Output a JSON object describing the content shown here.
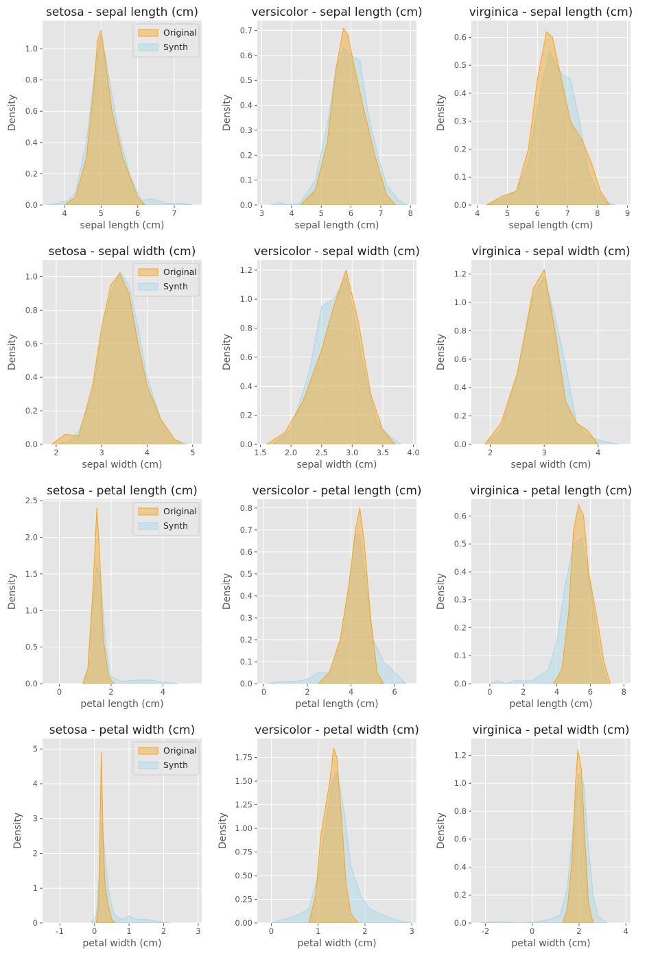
{
  "legend_labels": {
    "original": "Original",
    "synth": "Synth"
  },
  "colors": {
    "original": "#f5a623",
    "synth": "#a8d8e6",
    "panel_bg": "#e5e5e5",
    "grid": "#ffffff",
    "text": "#555555",
    "title": "#222222"
  },
  "chart_data": [
    {
      "type": "area",
      "title": "setosa - sepal length (cm)",
      "xlabel": "sepal length (cm)",
      "ylabel": "Density",
      "xlim": [
        3.4,
        7.75
      ],
      "ylim": [
        0,
        1.18
      ],
      "xticks": [
        "4",
        "5",
        "6",
        "7"
      ],
      "yticks": [
        "0.0",
        "0.2",
        "0.4",
        "0.6",
        "0.8",
        "1.0"
      ],
      "legend": "upper right",
      "series": [
        {
          "name": "Original",
          "x": [
            4.0,
            4.3,
            4.6,
            4.8,
            4.9,
            5.0,
            5.1,
            5.3,
            5.6,
            6.0,
            6.2
          ],
          "y": [
            0,
            0.05,
            0.3,
            0.75,
            1.05,
            1.12,
            0.95,
            0.6,
            0.3,
            0.05,
            0
          ]
        },
        {
          "name": "Synth",
          "x": [
            3.5,
            3.8,
            4.1,
            4.3,
            4.6,
            4.85,
            5.0,
            5.1,
            5.3,
            5.5,
            5.8,
            6.1,
            6.4,
            6.8,
            7.2,
            7.5
          ],
          "y": [
            0,
            0.01,
            0.03,
            0.08,
            0.4,
            0.9,
            1.08,
            0.98,
            0.7,
            0.45,
            0.18,
            0.03,
            0.04,
            0.01,
            0.01,
            0
          ]
        }
      ]
    },
    {
      "type": "area",
      "title": "versicolor - sepal length (cm)",
      "xlabel": "sepal length (cm)",
      "ylabel": "Density",
      "xlim": [
        2.85,
        8.2
      ],
      "ylim": [
        0,
        0.74
      ],
      "xticks": [
        "3",
        "4",
        "5",
        "6",
        "7",
        "8"
      ],
      "yticks": [
        "0.0",
        "0.1",
        "0.2",
        "0.3",
        "0.4",
        "0.5",
        "0.6",
        "0.7"
      ],
      "series": [
        {
          "name": "Original",
          "x": [
            4.3,
            4.8,
            5.2,
            5.5,
            5.75,
            5.9,
            6.1,
            6.4,
            6.8,
            7.2,
            7.5
          ],
          "y": [
            0,
            0.06,
            0.25,
            0.55,
            0.71,
            0.68,
            0.56,
            0.4,
            0.2,
            0.04,
            0
          ]
        },
        {
          "name": "Synth",
          "x": [
            3.3,
            3.6,
            3.9,
            4.3,
            4.8,
            5.2,
            5.5,
            5.75,
            6.0,
            6.3,
            6.6,
            6.9,
            7.2,
            7.6,
            7.9
          ],
          "y": [
            0,
            0.01,
            0.0,
            0.01,
            0.1,
            0.32,
            0.55,
            0.63,
            0.6,
            0.58,
            0.35,
            0.2,
            0.08,
            0.02,
            0
          ]
        }
      ]
    },
    {
      "type": "area",
      "title": "virginica - sepal length (cm)",
      "xlabel": "sepal length (cm)",
      "ylabel": "Density",
      "xlim": [
        3.8,
        9.1
      ],
      "ylim": [
        0,
        0.66
      ],
      "xticks": [
        "4",
        "5",
        "6",
        "7",
        "8",
        "9"
      ],
      "yticks": [
        "0.0",
        "0.1",
        "0.2",
        "0.3",
        "0.4",
        "0.5",
        "0.6"
      ],
      "series": [
        {
          "name": "Original",
          "x": [
            4.3,
            4.8,
            5.3,
            5.7,
            6.0,
            6.3,
            6.5,
            6.8,
            7.1,
            7.5,
            7.8,
            8.1,
            8.4
          ],
          "y": [
            0,
            0.03,
            0.05,
            0.2,
            0.45,
            0.62,
            0.6,
            0.45,
            0.3,
            0.23,
            0.15,
            0.05,
            0
          ]
        },
        {
          "name": "Synth",
          "x": [
            4.3,
            4.8,
            5.3,
            5.7,
            6.0,
            6.4,
            6.8,
            7.1,
            7.4,
            7.7,
            8.0,
            8.3,
            8.6
          ],
          "y": [
            0,
            0.02,
            0.05,
            0.15,
            0.35,
            0.55,
            0.47,
            0.45,
            0.3,
            0.12,
            0.05,
            0.01,
            0
          ]
        }
      ]
    },
    {
      "type": "area",
      "title": "setosa - sepal width (cm)",
      "xlabel": "sepal width (cm)",
      "ylabel": "Density",
      "xlim": [
        1.7,
        5.2
      ],
      "ylim": [
        0,
        1.1
      ],
      "xticks": [
        "2",
        "3",
        "4",
        "5"
      ],
      "yticks": [
        "0.0",
        "0.2",
        "0.4",
        "0.6",
        "0.8",
        "1.0"
      ],
      "legend": "upper right",
      "series": [
        {
          "name": "Original",
          "x": [
            1.9,
            2.2,
            2.5,
            2.8,
            3.0,
            3.2,
            3.4,
            3.6,
            3.8,
            4.0,
            4.3,
            4.6,
            4.8
          ],
          "y": [
            0,
            0.06,
            0.05,
            0.35,
            0.7,
            0.95,
            1.02,
            0.9,
            0.6,
            0.35,
            0.15,
            0.03,
            0
          ]
        },
        {
          "name": "Synth",
          "x": [
            2.0,
            2.3,
            2.5,
            2.8,
            3.0,
            3.2,
            3.4,
            3.6,
            3.8,
            4.0,
            4.3,
            4.6,
            4.9
          ],
          "y": [
            0,
            0.02,
            0.08,
            0.3,
            0.65,
            0.9,
            1.03,
            0.95,
            0.7,
            0.4,
            0.15,
            0.03,
            0
          ]
        }
      ]
    },
    {
      "type": "area",
      "title": "versicolor - sepal width (cm)",
      "xlabel": "sepal width (cm)",
      "ylabel": "Density",
      "xlim": [
        1.45,
        4.05
      ],
      "ylim": [
        0,
        1.27
      ],
      "xticks": [
        "1.5",
        "2.0",
        "2.5",
        "3.0",
        "3.5",
        "4.0"
      ],
      "yticks": [
        "0.0",
        "0.2",
        "0.4",
        "0.6",
        "0.8",
        "1.0",
        "1.2"
      ],
      "series": [
        {
          "name": "Original",
          "x": [
            1.6,
            1.9,
            2.2,
            2.5,
            2.7,
            2.9,
            3.1,
            3.3,
            3.5,
            3.7
          ],
          "y": [
            0,
            0.08,
            0.3,
            0.65,
            0.95,
            1.2,
            0.85,
            0.35,
            0.1,
            0
          ]
        },
        {
          "name": "Synth",
          "x": [
            1.7,
            2.0,
            2.3,
            2.5,
            2.7,
            2.9,
            3.0,
            3.2,
            3.4,
            3.6,
            3.8
          ],
          "y": [
            0,
            0.1,
            0.5,
            0.95,
            1.0,
            1.15,
            0.95,
            0.5,
            0.15,
            0.06,
            0
          ]
        }
      ]
    },
    {
      "type": "area",
      "title": "virginica - sepal width (cm)",
      "xlabel": "sepal width (cm)",
      "ylabel": "Density",
      "xlim": [
        1.65,
        4.6
      ],
      "ylim": [
        0,
        1.3
      ],
      "xticks": [
        "2",
        "3",
        "4"
      ],
      "yticks": [
        "0.0",
        "0.2",
        "0.4",
        "0.6",
        "0.8",
        "1.0",
        "1.2"
      ],
      "series": [
        {
          "name": "Original",
          "x": [
            1.9,
            2.2,
            2.5,
            2.8,
            3.0,
            3.2,
            3.4,
            3.6,
            3.8,
            4.0
          ],
          "y": [
            0,
            0.15,
            0.5,
            1.1,
            1.23,
            0.8,
            0.3,
            0.15,
            0.1,
            0
          ]
        },
        {
          "name": "Synth",
          "x": [
            1.9,
            2.2,
            2.5,
            2.8,
            3.0,
            3.2,
            3.4,
            3.6,
            3.8,
            4.1,
            4.4
          ],
          "y": [
            0,
            0.1,
            0.5,
            1.05,
            1.18,
            0.9,
            0.55,
            0.15,
            0.06,
            0.02,
            0
          ]
        }
      ]
    },
    {
      "type": "area",
      "title": "setosa - petal length (cm)",
      "xlabel": "petal length (cm)",
      "ylabel": "Density",
      "xlim": [
        -0.65,
        5.5
      ],
      "ylim": [
        0,
        2.52
      ],
      "xticks": [
        "0",
        "2",
        "4"
      ],
      "yticks": [
        "0.0",
        "0.5",
        "1.0",
        "1.5",
        "2.0",
        "2.5"
      ],
      "legend": "upper right",
      "series": [
        {
          "name": "Original",
          "x": [
            0.9,
            1.1,
            1.3,
            1.45,
            1.55,
            1.7,
            1.9,
            2.1
          ],
          "y": [
            0,
            0.2,
            1.3,
            2.4,
            1.8,
            0.6,
            0.1,
            0
          ]
        },
        {
          "name": "Synth",
          "x": [
            0.9,
            1.1,
            1.3,
            1.45,
            1.6,
            1.8,
            2.0,
            2.4,
            3.0,
            3.5,
            4.0,
            4.6
          ],
          "y": [
            0,
            0.2,
            1.2,
            1.6,
            1.4,
            0.5,
            0.1,
            0.03,
            0.05,
            0.05,
            0.02,
            0
          ]
        }
      ]
    },
    {
      "type": "area",
      "title": "versicolor - petal length (cm)",
      "xlabel": "petal length (cm)",
      "ylabel": "Density",
      "xlim": [
        -0.3,
        7.0
      ],
      "ylim": [
        0,
        0.84
      ],
      "xticks": [
        "0",
        "2",
        "4",
        "6"
      ],
      "yticks": [
        "0.0",
        "0.1",
        "0.2",
        "0.3",
        "0.4",
        "0.5",
        "0.6",
        "0.7",
        "0.8"
      ],
      "series": [
        {
          "name": "Original",
          "x": [
            2.5,
            3.0,
            3.5,
            3.9,
            4.2,
            4.4,
            4.6,
            4.9,
            5.2,
            5.5
          ],
          "y": [
            0,
            0.05,
            0.2,
            0.45,
            0.7,
            0.8,
            0.65,
            0.3,
            0.05,
            0
          ]
        },
        {
          "name": "Synth",
          "x": [
            0.2,
            0.8,
            1.5,
            2.0,
            2.5,
            3.0,
            3.5,
            3.9,
            4.2,
            4.4,
            4.7,
            5.0,
            5.5,
            6.0,
            6.5
          ],
          "y": [
            0,
            0.01,
            0.01,
            0.02,
            0.05,
            0.05,
            0.2,
            0.45,
            0.68,
            0.68,
            0.45,
            0.2,
            0.1,
            0.05,
            0
          ]
        }
      ]
    },
    {
      "type": "area",
      "title": "virginica - petal length (cm)",
      "xlabel": "petal length (cm)",
      "ylabel": "Density",
      "xlim": [
        -1.1,
        8.4
      ],
      "ylim": [
        0,
        0.66
      ],
      "xticks": [
        "0",
        "2",
        "4",
        "6",
        "8"
      ],
      "yticks": [
        "0.0",
        "0.1",
        "0.2",
        "0.3",
        "0.4",
        "0.5",
        "0.6"
      ],
      "series": [
        {
          "name": "Original",
          "x": [
            3.8,
            4.3,
            4.7,
            5.0,
            5.3,
            5.6,
            5.9,
            6.2,
            6.5,
            6.8,
            7.2
          ],
          "y": [
            0,
            0.05,
            0.25,
            0.55,
            0.64,
            0.6,
            0.4,
            0.3,
            0.2,
            0.08,
            0
          ]
        },
        {
          "name": "Synth",
          "x": [
            0.0,
            0.5,
            1.0,
            1.5,
            2.0,
            2.5,
            3.0,
            3.5,
            4.0,
            4.5,
            5.0,
            5.5,
            6.0,
            6.5,
            7.0
          ],
          "y": [
            0,
            0.01,
            0.0,
            0.01,
            0.01,
            0.01,
            0.03,
            0.05,
            0.15,
            0.35,
            0.5,
            0.52,
            0.35,
            0.12,
            0
          ]
        }
      ]
    },
    {
      "type": "area",
      "title": "setosa - petal width (cm)",
      "xlabel": "petal width (cm)",
      "ylabel": "Density",
      "xlim": [
        -1.5,
        3.1
      ],
      "ylim": [
        0,
        5.3
      ],
      "xticks": [
        "-1",
        "0",
        "1",
        "2",
        "3"
      ],
      "yticks": [
        "0",
        "1",
        "2",
        "3",
        "4",
        "5"
      ],
      "legend": "upper right",
      "series": [
        {
          "name": "Original",
          "x": [
            0.05,
            0.12,
            0.2,
            0.25,
            0.3,
            0.38,
            0.5,
            0.6
          ],
          "y": [
            0,
            0.5,
            4.9,
            2.5,
            1.2,
            0.6,
            0.1,
            0
          ]
        },
        {
          "name": "Synth",
          "x": [
            -0.1,
            0.05,
            0.15,
            0.22,
            0.3,
            0.4,
            0.5,
            0.6,
            0.8,
            1.0,
            1.2,
            1.5,
            1.8,
            2.2
          ],
          "y": [
            0,
            0.2,
            1.5,
            2.9,
            2.0,
            1.0,
            0.5,
            0.2,
            0.1,
            0.2,
            0.1,
            0.1,
            0.05,
            0
          ]
        }
      ]
    },
    {
      "type": "area",
      "title": "versicolor - petal width (cm)",
      "xlabel": "petal width (cm)",
      "ylabel": "Density",
      "xlim": [
        -0.3,
        3.1
      ],
      "ylim": [
        0,
        1.95
      ],
      "xticks": [
        "0",
        "1",
        "2",
        "3"
      ],
      "yticks": [
        "0.00",
        "0.25",
        "0.50",
        "0.75",
        "1.00",
        "1.25",
        "1.50",
        "1.75"
      ],
      "series": [
        {
          "name": "Original",
          "x": [
            0.8,
            0.95,
            1.05,
            1.15,
            1.25,
            1.33,
            1.4,
            1.5,
            1.6,
            1.7,
            1.85
          ],
          "y": [
            0,
            0.3,
            0.9,
            1.2,
            1.5,
            1.85,
            1.75,
            1.1,
            0.4,
            0.1,
            0
          ]
        },
        {
          "name": "Synth",
          "x": [
            0.0,
            0.2,
            0.5,
            0.8,
            1.0,
            1.15,
            1.3,
            1.4,
            1.55,
            1.7,
            1.9,
            2.1,
            2.4,
            2.7,
            3.0
          ],
          "y": [
            0,
            0.03,
            0.07,
            0.15,
            0.5,
            1.0,
            1.5,
            1.6,
            1.2,
            0.6,
            0.3,
            0.15,
            0.08,
            0.03,
            0
          ]
        }
      ]
    },
    {
      "type": "area",
      "title": "virginica - petal width (cm)",
      "xlabel": "petal width (cm)",
      "ylabel": "Density",
      "xlim": [
        -2.6,
        4.2
      ],
      "ylim": [
        0,
        1.32
      ],
      "xticks": [
        "-2",
        "0",
        "2",
        "4"
      ],
      "yticks": [
        "0.0",
        "0.2",
        "0.4",
        "0.6",
        "0.8",
        "1.0",
        "1.2"
      ],
      "series": [
        {
          "name": "Original",
          "x": [
            1.3,
            1.5,
            1.7,
            1.85,
            1.95,
            2.1,
            2.25,
            2.4,
            2.6
          ],
          "y": [
            0,
            0.1,
            0.45,
            1.0,
            1.24,
            1.1,
            0.6,
            0.15,
            0
          ]
        },
        {
          "name": "Synth",
          "x": [
            -2.2,
            -1.5,
            -0.5,
            0.3,
            0.8,
            1.2,
            1.5,
            1.8,
            2.0,
            2.2,
            2.4,
            2.6,
            2.8,
            3.2
          ],
          "y": [
            0,
            0.01,
            0.0,
            0.01,
            0.03,
            0.06,
            0.25,
            0.8,
            1.06,
            1.0,
            0.55,
            0.2,
            0.05,
            0
          ]
        }
      ]
    }
  ]
}
